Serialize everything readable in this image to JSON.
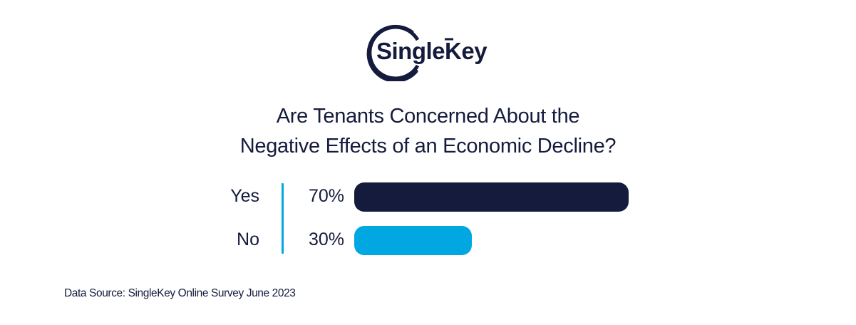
{
  "brand": {
    "logo_text": "SingleKey",
    "colors": {
      "navy": "#141b3c",
      "blue": "#00a7e1",
      "background": "#ffffff"
    }
  },
  "chart_data": {
    "type": "bar",
    "orientation": "horizontal",
    "title": "Are Tenants Concerned About the Negative Effects of an Economic Decline?",
    "title_lines": [
      "Are Tenants Concerned About the",
      "Negative Effects of an Economic Decline?"
    ],
    "categories": [
      "Yes",
      "No"
    ],
    "values": [
      70,
      30
    ],
    "value_labels": [
      "70%",
      "30%"
    ],
    "colors": [
      "#141b3c",
      "#00a7e1"
    ],
    "xlabel": "",
    "ylabel": "",
    "xlim": [
      0,
      100
    ],
    "grid": false,
    "legend": "none",
    "source": "Data Source: SingleKey Online Survey June 2023"
  }
}
